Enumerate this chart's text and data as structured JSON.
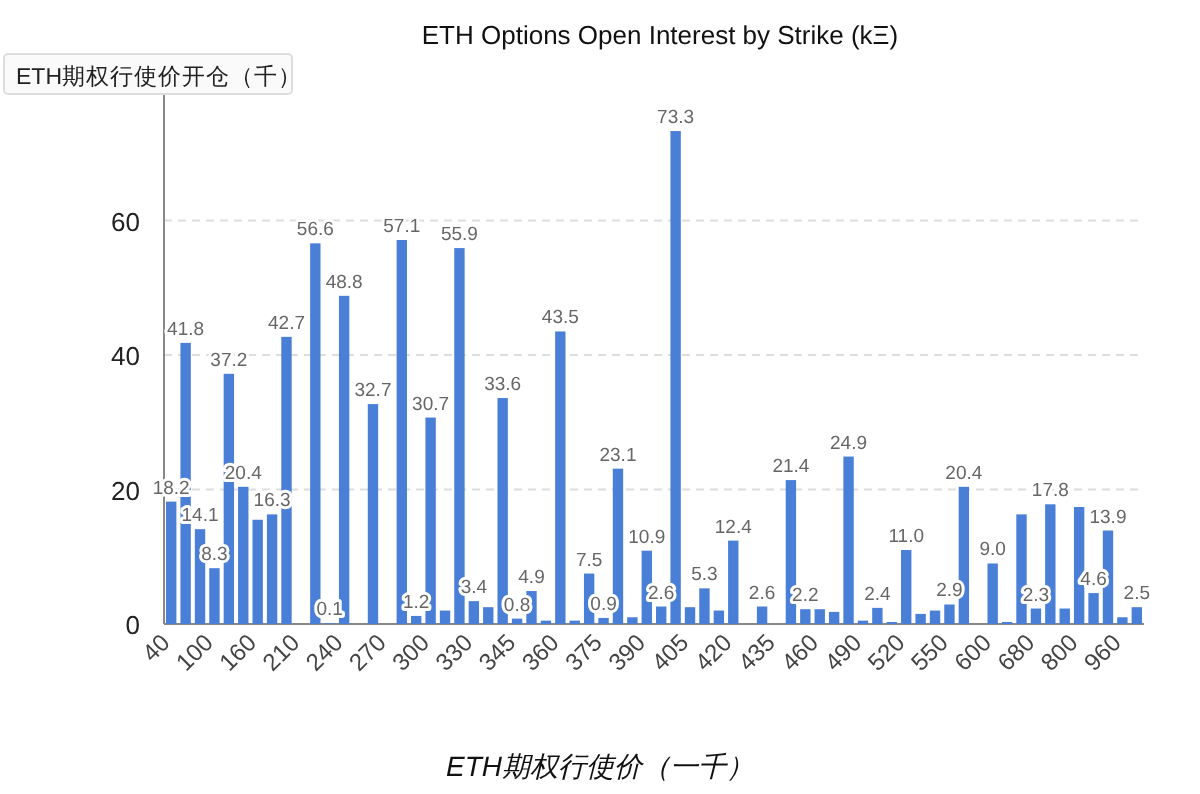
{
  "chart_data": {
    "type": "bar",
    "title": "ETH Options Open Interest by Strike (kΞ)",
    "ylabel": "ETH期权行使价开仓（千）",
    "annotations": [
      "ETH期权行使价（一千）"
    ],
    "categories": [
      "40",
      null,
      null,
      "100",
      null,
      null,
      "160",
      null,
      null,
      "210",
      null,
      null,
      "240",
      null,
      null,
      "270",
      null,
      null,
      "300",
      null,
      null,
      "330",
      null,
      null,
      "345",
      null,
      null,
      "360",
      null,
      null,
      "375",
      null,
      null,
      "390",
      null,
      null,
      "405",
      null,
      null,
      "420",
      null,
      null,
      "435",
      null,
      null,
      "460",
      null,
      null,
      "490",
      null,
      null,
      "520",
      null,
      null,
      "550",
      null,
      null,
      "600",
      null,
      null,
      "680",
      null,
      null,
      "800",
      null,
      null,
      "960",
      null
    ],
    "values": [
      18.2,
      41.8,
      14.1,
      8.3,
      37.2,
      20.4,
      15.5,
      16.3,
      42.7,
      null,
      56.6,
      0.1,
      48.8,
      null,
      32.7,
      null,
      57.1,
      1.2,
      30.7,
      2.0,
      55.9,
      3.4,
      2.5,
      33.6,
      0.8,
      4.9,
      0.5,
      43.5,
      0.5,
      7.5,
      0.9,
      23.1,
      1.0,
      10.9,
      2.6,
      73.3,
      2.5,
      5.3,
      2.0,
      12.4,
      null,
      2.6,
      null,
      21.4,
      2.2,
      2.2,
      1.8,
      24.9,
      0.5,
      2.4,
      0.3,
      11.0,
      1.5,
      2.0,
      2.9,
      20.4,
      null,
      9.0,
      0.3,
      16.3,
      2.3,
      17.8,
      2.3,
      17.4,
      4.6,
      13.9,
      1.0,
      2.5
    ],
    "value_labels": [
      "18.2",
      "41.8",
      "14.1",
      "8.3",
      "37.2",
      "20.4",
      null,
      "16.3",
      "42.7",
      null,
      "56.6",
      "0.1",
      "48.8",
      null,
      "32.7",
      null,
      "57.1",
      "1.2",
      "30.7",
      null,
      "55.9",
      "3.4",
      null,
      "33.6",
      "0.8",
      "4.9",
      null,
      "43.5",
      null,
      "7.5",
      "0.9",
      "23.1",
      null,
      "10.9",
      "2.6",
      "73.3",
      null,
      "5.3",
      null,
      "12.4",
      null,
      "2.6",
      null,
      "21.4",
      "2.2",
      null,
      null,
      "24.9",
      null,
      "2.4",
      null,
      "11.0",
      null,
      null,
      "2.9",
      "20.4",
      null,
      "9.0",
      null,
      null,
      "2.3",
      "17.8",
      null,
      null,
      "4.6",
      "13.9",
      null,
      "2.5"
    ],
    "color": "#4a7fd8",
    "ylim": [
      0,
      80
    ],
    "yticks": [
      0,
      20,
      40,
      60
    ],
    "grid": "y"
  }
}
